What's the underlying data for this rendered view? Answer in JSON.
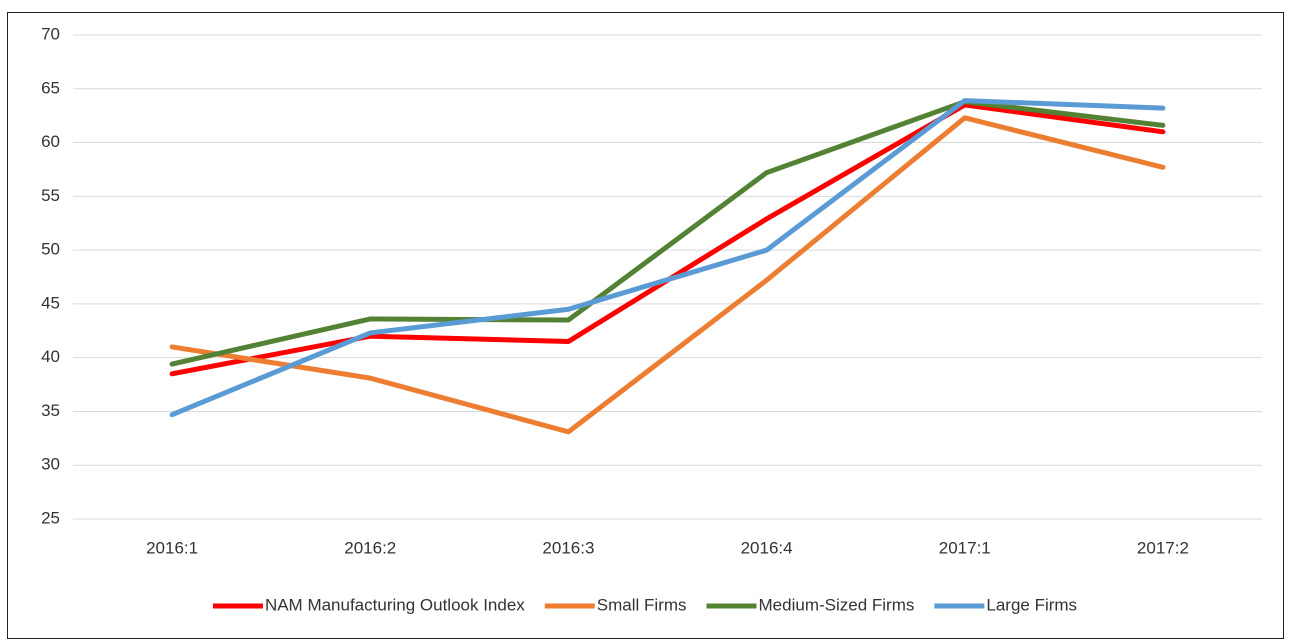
{
  "chart_data": {
    "type": "line",
    "categories": [
      "2016:1",
      "2016:2",
      "2016:3",
      "2016:4",
      "2017:1",
      "2017:2"
    ],
    "series": [
      {
        "name": "NAM Manufacturing Outlook Index",
        "color": "#ff0000",
        "values": [
          38.5,
          42.0,
          41.5,
          52.9,
          63.5,
          61.0
        ]
      },
      {
        "name": "Small Firms",
        "color": "#ed7d31",
        "values": [
          41.0,
          38.1,
          33.1,
          47.2,
          62.3,
          57.7
        ]
      },
      {
        "name": "Medium-Sized Firms",
        "color": "#548235",
        "values": [
          39.4,
          43.6,
          43.5,
          57.2,
          63.8,
          61.6
        ]
      },
      {
        "name": "Large Firms",
        "color": "#5b9bd5",
        "values": [
          34.7,
          42.3,
          44.5,
          50.0,
          63.9,
          63.2
        ]
      }
    ],
    "ylim": [
      25,
      70
    ],
    "yticks": [
      25,
      30,
      35,
      40,
      45,
      50,
      55,
      60,
      65,
      70
    ],
    "grid": true,
    "legend": "bottom"
  }
}
